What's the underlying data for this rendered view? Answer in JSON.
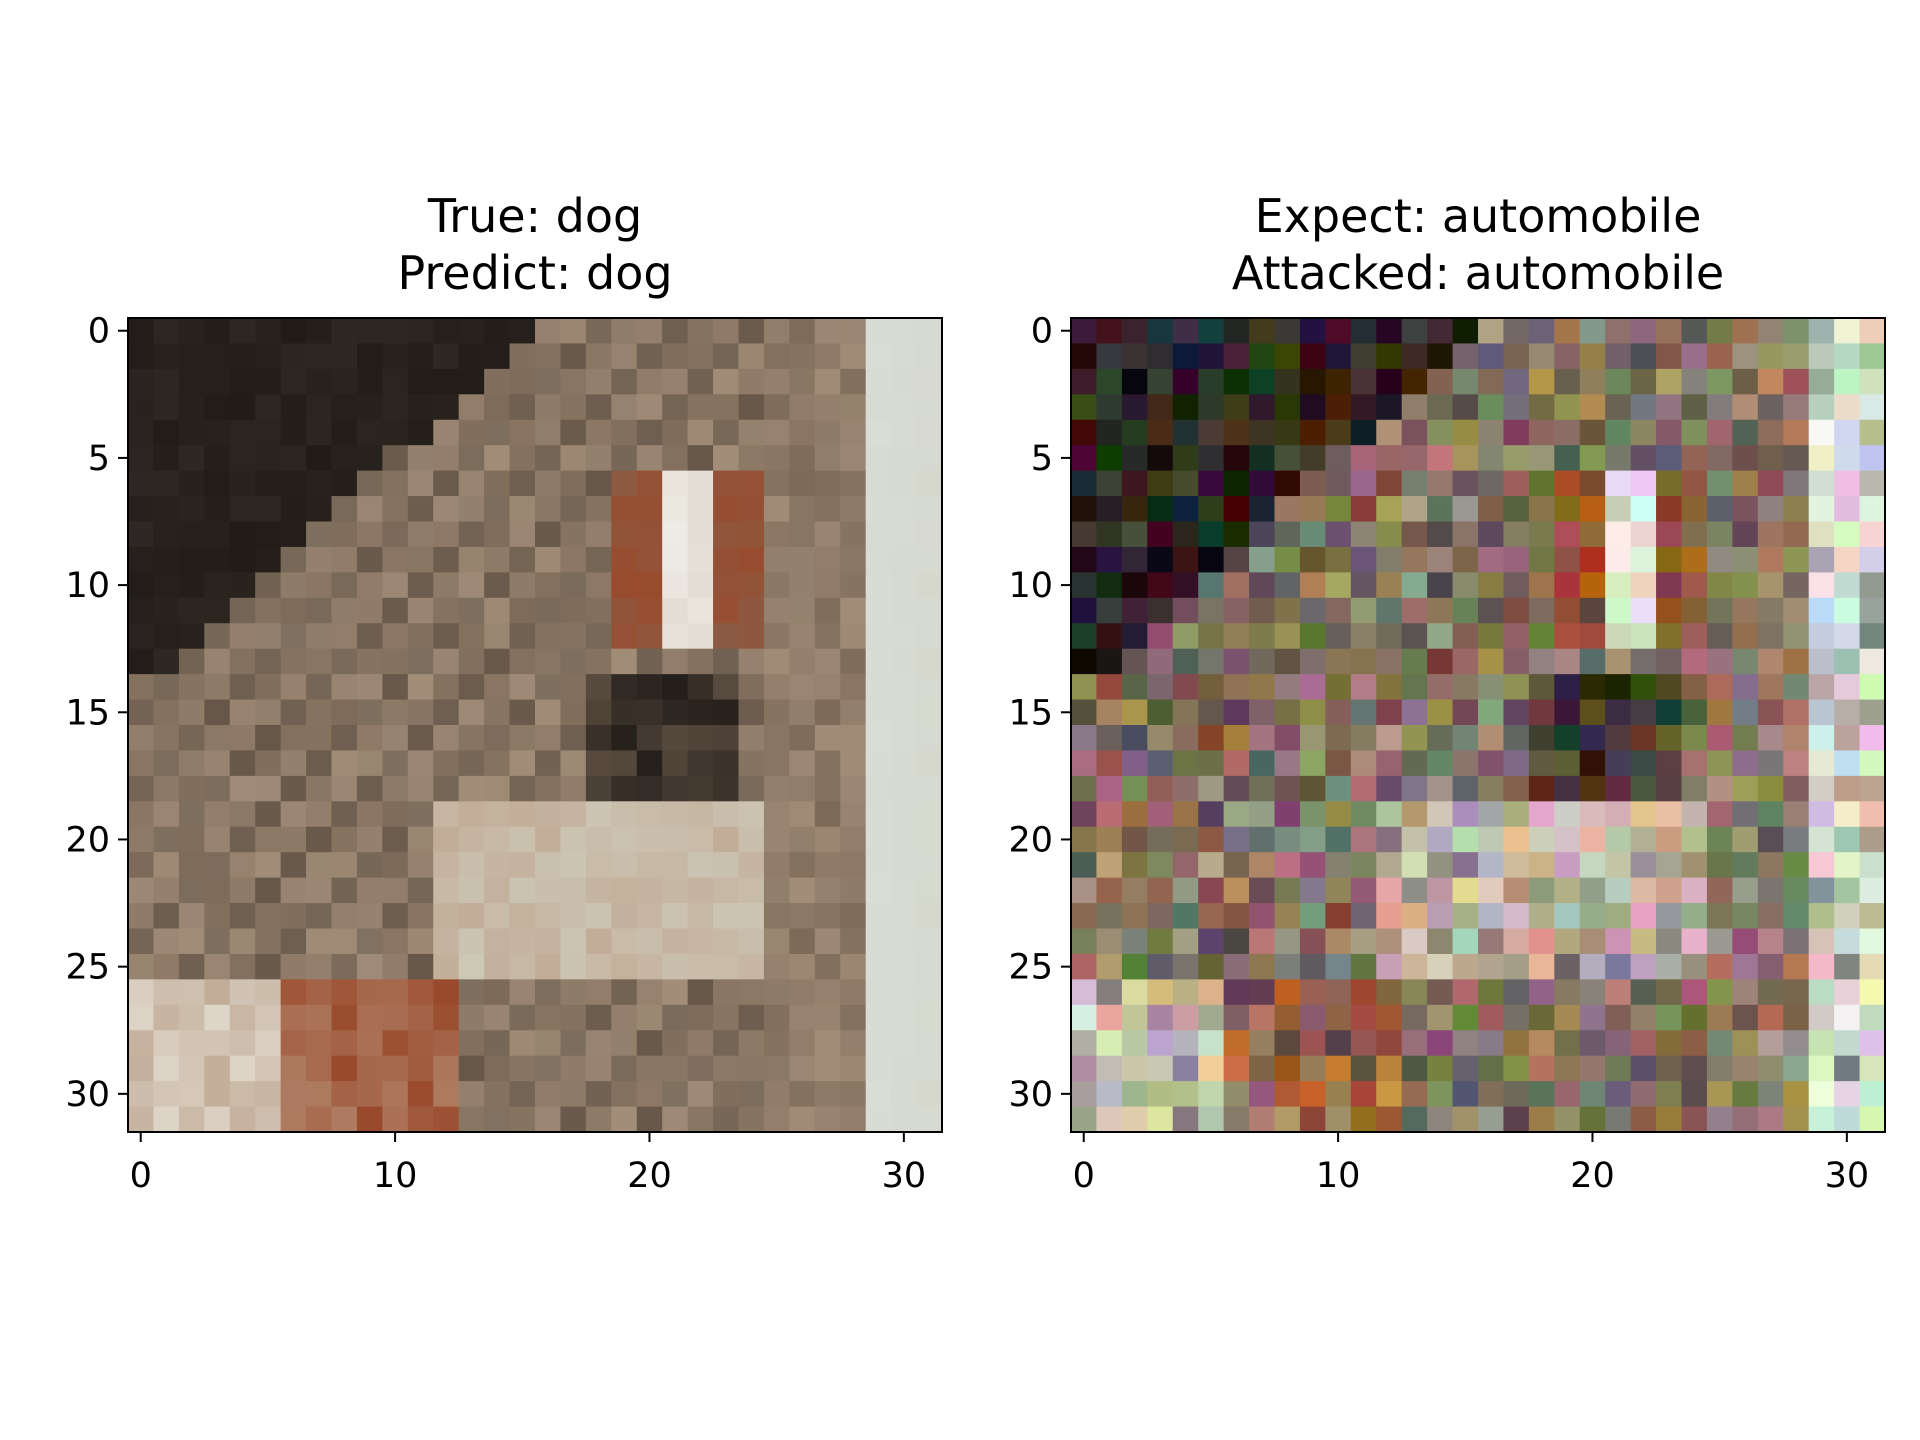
{
  "chart_data": [
    {
      "type": "heatmap",
      "title_lines": [
        "True: dog",
        "Predict: dog"
      ],
      "xlim": [
        -0.5,
        31.5
      ],
      "ylim": [
        31.5,
        -0.5
      ],
      "x_ticks": [
        0,
        10,
        20,
        30
      ],
      "y_ticks": [
        0,
        5,
        10,
        15,
        20,
        25,
        30
      ],
      "grid": false,
      "image_size": [
        32,
        32
      ],
      "variant": "original"
    },
    {
      "type": "heatmap",
      "title_lines": [
        "Expect: automobile",
        "Attacked: automobile"
      ],
      "xlim": [
        -0.5,
        31.5
      ],
      "ylim": [
        31.5,
        -0.5
      ],
      "x_ticks": [
        0,
        10,
        20,
        30
      ],
      "y_ticks": [
        0,
        5,
        10,
        15,
        20,
        25,
        30
      ],
      "grid": false,
      "image_size": [
        32,
        32
      ],
      "variant": "perturbed"
    }
  ],
  "palette": {
    "dark": "#211c18",
    "midbrown": "#7d6a58",
    "lightbrown": "#a18d78",
    "tan": "#c2ad98",
    "rust": "#9a4a2c",
    "white": "#f2f1ec",
    "pale": "#d2d3c4",
    "wall": "#d9ddd6"
  }
}
